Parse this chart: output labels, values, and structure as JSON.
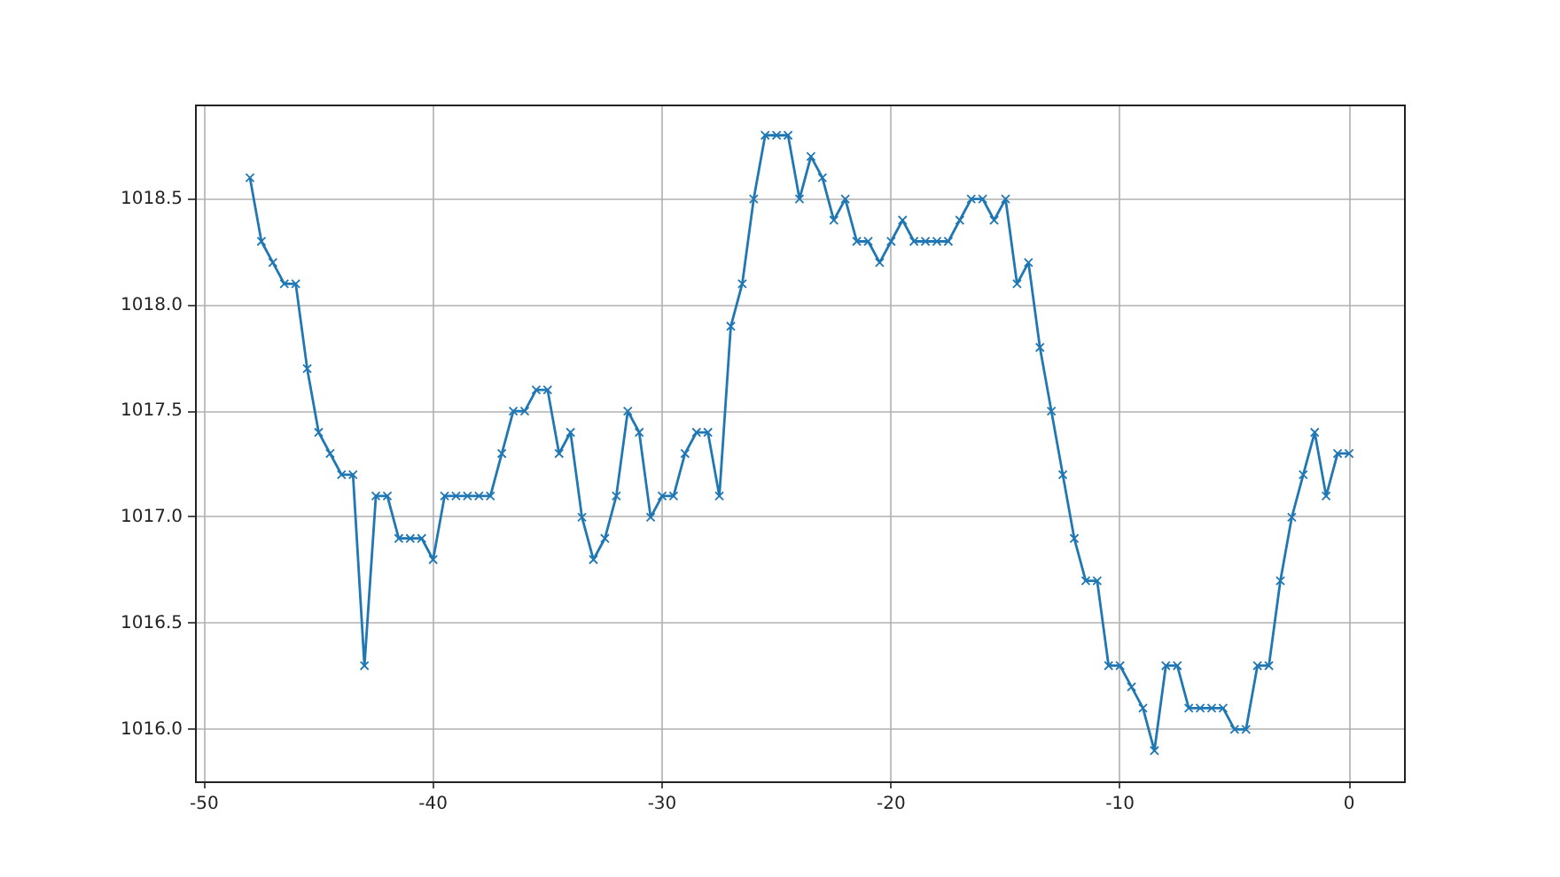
{
  "chart_data": {
    "type": "line",
    "color": "#1f77b4",
    "marker": "cross",
    "grid": true,
    "x": [
      -48,
      -47.5,
      -47,
      -46.5,
      -46,
      -45.5,
      -45,
      -44.5,
      -44,
      -43.5,
      -43,
      -42.5,
      -42,
      -41.5,
      -41,
      -40.5,
      -40,
      -39.5,
      -39,
      -38.5,
      -38,
      -37.5,
      -37,
      -36.5,
      -36,
      -35.5,
      -35,
      -34.5,
      -34,
      -33.5,
      -33,
      -32.5,
      -32,
      -31.5,
      -31,
      -30.5,
      -30,
      -29.5,
      -29,
      -28.5,
      -28,
      -27.5,
      -27,
      -26.5,
      -26,
      -25.5,
      -25,
      -24.5,
      -24,
      -23.5,
      -23,
      -22.5,
      -22,
      -21.5,
      -21,
      -20.5,
      -20,
      -19.5,
      -19,
      -18.5,
      -18,
      -17.5,
      -17,
      -16.5,
      -16,
      -15.5,
      -15,
      -14.5,
      -14,
      -13.5,
      -13,
      -12.5,
      -12,
      -11.5,
      -11,
      -10.5,
      -10,
      -9.5,
      -9,
      -8.5,
      -8,
      -7.5,
      -7,
      -6.5,
      -6,
      -5.5,
      -5,
      -4.5,
      -4,
      -3.5,
      -3,
      -2.5,
      -2,
      -1.5,
      -1,
      -0.5,
      0
    ],
    "values": [
      1018.6,
      1018.3,
      1018.2,
      1018.1,
      1018.1,
      1017.7,
      1017.4,
      1017.3,
      1017.2,
      1017.2,
      1016.3,
      1017.1,
      1017.1,
      1016.9,
      1016.9,
      1016.9,
      1016.8,
      1017.1,
      1017.1,
      1017.1,
      1017.1,
      1017.1,
      1017.3,
      1017.5,
      1017.5,
      1017.6,
      1017.6,
      1017.3,
      1017.4,
      1017.0,
      1016.8,
      1016.9,
      1017.1,
      1017.5,
      1017.4,
      1017.0,
      1017.1,
      1017.1,
      1017.3,
      1017.4,
      1017.4,
      1017.1,
      1017.9,
      1018.1,
      1018.5,
      1018.8,
      1018.8,
      1018.8,
      1018.5,
      1018.7,
      1018.6,
      1018.4,
      1018.5,
      1018.3,
      1018.3,
      1018.2,
      1018.3,
      1018.4,
      1018.3,
      1018.3,
      1018.3,
      1018.3,
      1018.4,
      1018.5,
      1018.5,
      1018.4,
      1018.5,
      1018.1,
      1018.2,
      1017.8,
      1017.5,
      1017.2,
      1016.9,
      1016.7,
      1016.7,
      1016.3,
      1016.3,
      1016.2,
      1016.1,
      1015.9,
      1016.3,
      1016.3,
      1016.1,
      1016.1,
      1016.1,
      1016.1,
      1016.0,
      1016.0,
      1016.3,
      1016.3,
      1016.7,
      1017.0,
      1017.2,
      1017.4,
      1017.1,
      1017.3,
      1017.3
    ],
    "xlim": [
      -50.4,
      2.4
    ],
    "ylim": [
      1015.755,
      1018.945
    ],
    "xticks": [
      -50,
      -40,
      -30,
      -20,
      -10,
      0
    ],
    "yticks": [
      {
        "value": 1016,
        "label": "1016.0"
      },
      {
        "value": 1016.5,
        "label": "1016.5"
      },
      {
        "value": 1017,
        "label": "1017.0"
      },
      {
        "value": 1017.5,
        "label": "1017.5"
      },
      {
        "value": 1018,
        "label": "1018.0"
      },
      {
        "value": 1018.5,
        "label": "1018.5"
      }
    ]
  }
}
